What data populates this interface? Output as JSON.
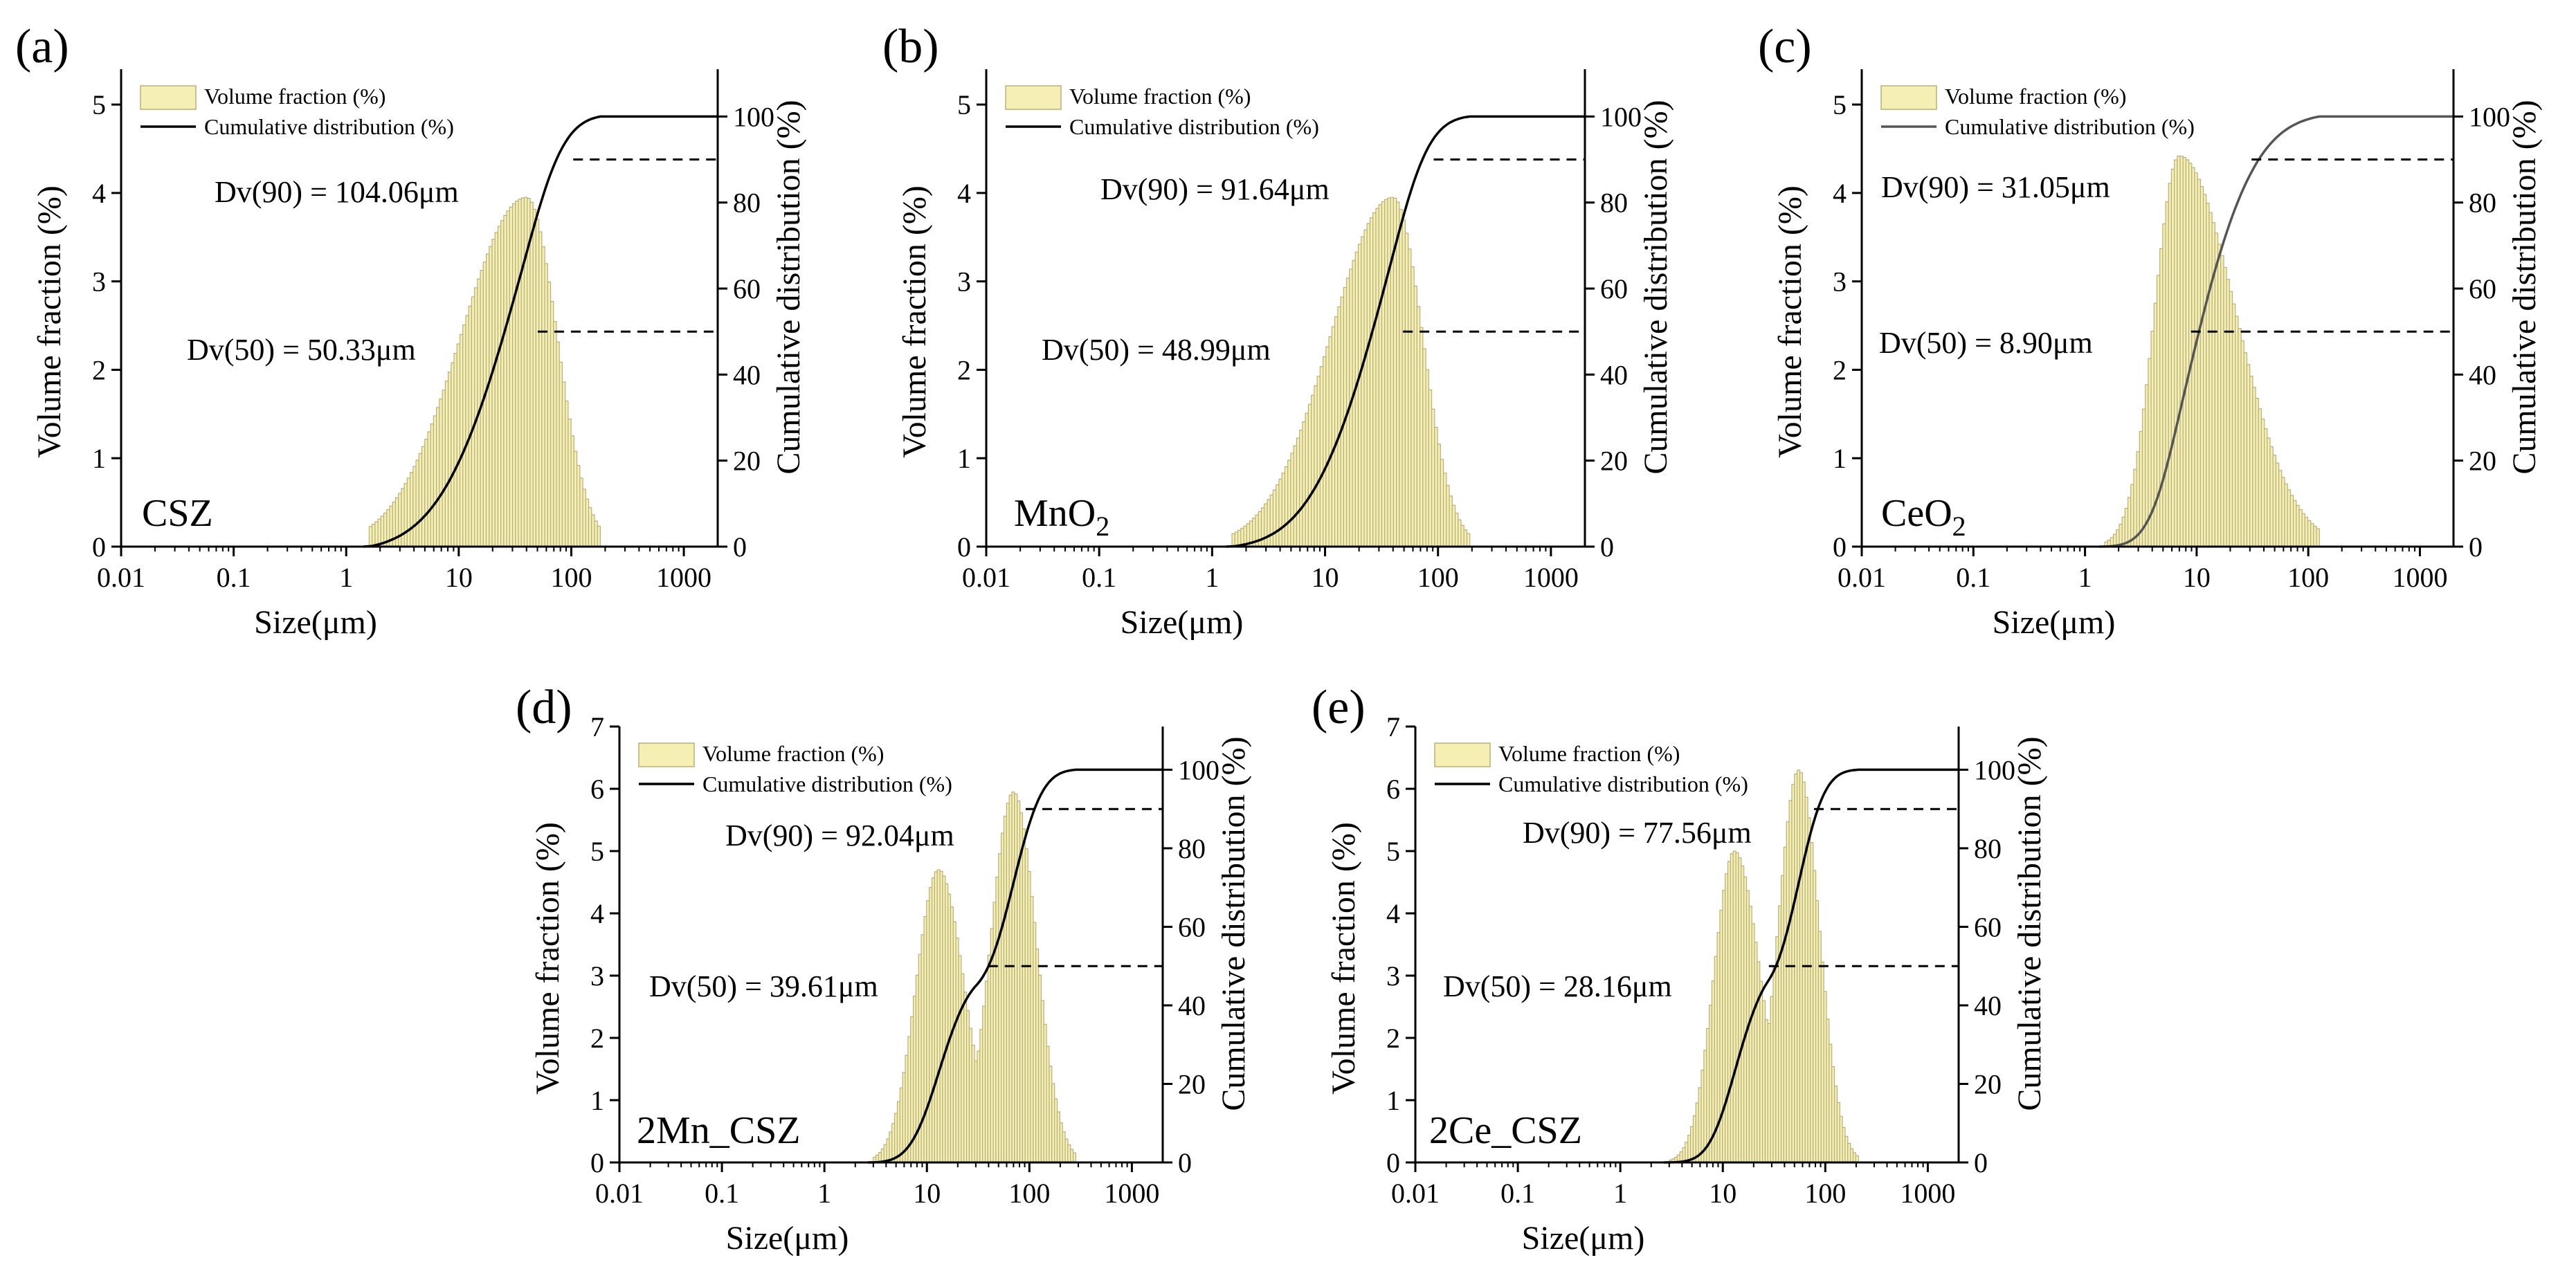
{
  "chart_data": [
    {
      "type": "bar+line",
      "panel_label": "(a)",
      "sample": "CSZ",
      "sample_subscript": "",
      "xlabel": "Size(μm)",
      "ylabel_left": "Volume fraction (%)",
      "ylabel_right": "Cumulative distribution (%)",
      "x_scale": "log",
      "xlim": [
        0.01,
        2000
      ],
      "x_ticks": [
        "0.01",
        "0.1",
        "1",
        "10",
        "100",
        "1000"
      ],
      "ylim_left": [
        0,
        5.4
      ],
      "y_ticks_left": [
        "0",
        "1",
        "2",
        "3",
        "4",
        "5"
      ],
      "ylim_right": [
        0,
        111
      ],
      "y_ticks_right": [
        "0",
        "20",
        "40",
        "60",
        "80",
        "100"
      ],
      "legend": [
        "Volume fraction (%)",
        "Cumulative distribution (%)"
      ],
      "distribution": {
        "range": [
          1.6,
          180
        ],
        "peaks": [
          {
            "center": 40,
            "height": 3.95,
            "width_left": 0.58,
            "width_right": 0.27
          }
        ]
      },
      "cumulative_line_color": "#000000",
      "annotations": [
        {
          "label": "Dv(90)",
          "text": "Dv(90) = 104.06μm",
          "x": 104.06,
          "y_pct": 90
        },
        {
          "label": "Dv(50)",
          "text": "Dv(50) = 50.33μm",
          "x": 50.33,
          "y_pct": 50
        }
      ]
    },
    {
      "type": "bar+line",
      "panel_label": "(b)",
      "sample": "MnO",
      "sample_subscript": "2",
      "xlabel": "Size(μm)",
      "ylabel_left": "Volume fraction (%)",
      "ylabel_right": "Cumulative distribution (%)",
      "x_scale": "log",
      "xlim": [
        0.01,
        2000
      ],
      "x_ticks": [
        "0.01",
        "0.1",
        "1",
        "10",
        "100",
        "1000"
      ],
      "ylim_left": [
        0,
        5.4
      ],
      "y_ticks_left": [
        "0",
        "1",
        "2",
        "3",
        "4",
        "5"
      ],
      "ylim_right": [
        0,
        111
      ],
      "y_ticks_right": [
        "0",
        "20",
        "40",
        "60",
        "80",
        "100"
      ],
      "legend": [
        "Volume fraction (%)",
        "Cumulative distribution (%)"
      ],
      "distribution": {
        "range": [
          1.5,
          190
        ],
        "peaks": [
          {
            "center": 40,
            "height": 3.95,
            "width_left": 0.55,
            "width_right": 0.26
          }
        ]
      },
      "cumulative_line_color": "#000000",
      "annotations": [
        {
          "label": "Dv(90)",
          "text": "Dv(90) = 91.64μm",
          "x": 91.64,
          "y_pct": 90
        },
        {
          "label": "Dv(50)",
          "text": "Dv(50) = 48.99μm",
          "x": 48.99,
          "y_pct": 50
        }
      ]
    },
    {
      "type": "bar+line",
      "panel_label": "(c)",
      "sample": "CeO",
      "sample_subscript": "2",
      "xlabel": "Size(μm)",
      "ylabel_left": "Volume fraction (%)",
      "ylabel_right": "Cumulative distribution (%)",
      "x_scale": "log",
      "xlim": [
        0.01,
        2000
      ],
      "x_ticks": [
        "0.01",
        "0.1",
        "1",
        "10",
        "100",
        "1000"
      ],
      "ylim_left": [
        0,
        5.4
      ],
      "y_ticks_left": [
        "0",
        "1",
        "2",
        "3",
        "4",
        "5"
      ],
      "ylim_right": [
        0,
        111
      ],
      "y_ticks_right": [
        "0",
        "20",
        "40",
        "60",
        "80",
        "100"
      ],
      "legend": [
        "Volume fraction (%)",
        "Cumulative distribution (%)"
      ],
      "distribution": {
        "range": [
          1.5,
          120
        ],
        "peaks": [
          {
            "center": 7,
            "height": 4.42,
            "width_left": 0.22,
            "width_right": 0.5
          }
        ]
      },
      "cumulative_line_color": "#555555",
      "annotations": [
        {
          "label": "Dv(90)",
          "text": "Dv(90) = 31.05μm",
          "x": 31.05,
          "y_pct": 90
        },
        {
          "label": "Dv(50)",
          "text": "Dv(50) = 8.90μm",
          "x": 8.9,
          "y_pct": 50
        }
      ]
    },
    {
      "type": "bar+line",
      "panel_label": "(d)",
      "sample": "2Mn_CSZ",
      "sample_subscript": "",
      "xlabel": "Size(μm)",
      "ylabel_left": "Volume fraction (%)",
      "ylabel_right": "Cumulative distribution (%)",
      "x_scale": "log",
      "xlim": [
        0.01,
        2000
      ],
      "x_ticks": [
        "0.01",
        "0.1",
        "1",
        "10",
        "100",
        "1000"
      ],
      "ylim_left": [
        0,
        7
      ],
      "y_ticks_left": [
        "0",
        "1",
        "2",
        "3",
        "4",
        "5",
        "6",
        "7"
      ],
      "ylim_right": [
        0,
        111
      ],
      "y_ticks_right": [
        "0",
        "20",
        "40",
        "60",
        "80",
        "100"
      ],
      "legend": [
        "Volume fraction (%)",
        "Cumulative distribution (%)"
      ],
      "distribution": {
        "range": [
          3,
          280
        ],
        "peaks": [
          {
            "center": 13,
            "height": 4.7,
            "width_left": 0.22,
            "width_right": 0.25
          },
          {
            "center": 70,
            "height": 5.95,
            "width_left": 0.22,
            "width_right": 0.22
          }
        ]
      },
      "cumulative_line_color": "#000000",
      "annotations": [
        {
          "label": "Dv(90)",
          "text": "Dv(90) = 92.04μm",
          "x": 92.04,
          "y_pct": 90
        },
        {
          "label": "Dv(50)",
          "text": "Dv(50) = 39.61μm",
          "x": 39.61,
          "y_pct": 50
        }
      ]
    },
    {
      "type": "bar+line",
      "panel_label": "(e)",
      "sample": "2Ce_CSZ",
      "sample_subscript": "",
      "xlabel": "Size(μm)",
      "ylabel_left": "Volume fraction (%)",
      "ylabel_right": "Cumulative distribution (%)",
      "x_scale": "log",
      "xlim": [
        0.01,
        2000
      ],
      "x_ticks": [
        "0.01",
        "0.1",
        "1",
        "10",
        "100",
        "1000"
      ],
      "ylim_left": [
        0,
        7
      ],
      "y_ticks_left": [
        "0",
        "1",
        "2",
        "3",
        "4",
        "5",
        "6",
        "7"
      ],
      "ylim_right": [
        0,
        111
      ],
      "y_ticks_right": [
        "0",
        "20",
        "40",
        "60",
        "80",
        "100"
      ],
      "legend": [
        "Volume fraction (%)",
        "Cumulative distribution (%)"
      ],
      "distribution": {
        "range": [
          3,
          210
        ],
        "peaks": [
          {
            "center": 13,
            "height": 5.0,
            "width_left": 0.2,
            "width_right": 0.25
          },
          {
            "center": 55,
            "height": 6.3,
            "width_left": 0.2,
            "width_right": 0.2
          }
        ]
      },
      "cumulative_line_color": "#000000",
      "annotations": [
        {
          "label": "Dv(90)",
          "text": "Dv(90) = 77.56μm",
          "x": 77.56,
          "y_pct": 90
        },
        {
          "label": "Dv(50)",
          "text": "Dv(50) = 28.16μm",
          "x": 28.16,
          "y_pct": 50
        }
      ]
    }
  ],
  "colors": {
    "bar_fill": "#f5efb4",
    "bar_stroke": "#b8b07a",
    "axis": "#000000",
    "dash": "#000000"
  }
}
